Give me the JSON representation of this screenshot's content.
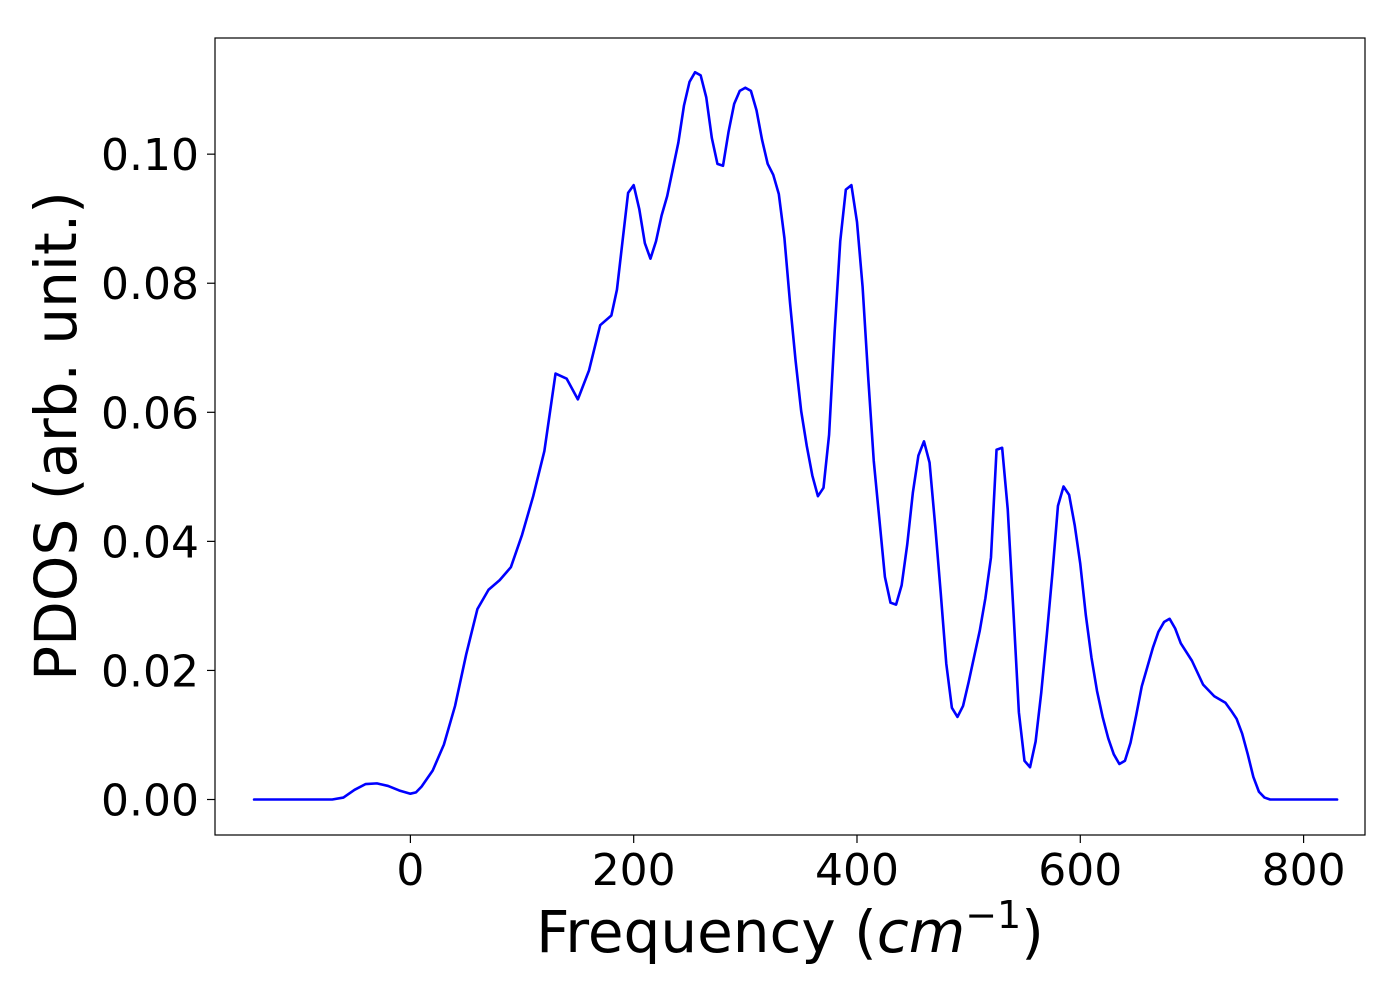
{
  "chart_data": {
    "type": "line",
    "xlabel": "Frequency (",
    "xlabel_unit": "cm",
    "xlabel_exponent": "−1",
    "xlabel_close": ")",
    "ylabel": "PDOS (arb. unit.)",
    "xlim": [
      -175,
      855
    ],
    "ylim": [
      -0.0055,
      0.118
    ],
    "x_ticks": [
      {
        "value": 0,
        "label": "0"
      },
      {
        "value": 200,
        "label": "200"
      },
      {
        "value": 400,
        "label": "400"
      },
      {
        "value": 600,
        "label": "600"
      },
      {
        "value": 800,
        "label": "800"
      }
    ],
    "y_ticks": [
      {
        "value": 0.0,
        "label": "0.00"
      },
      {
        "value": 0.02,
        "label": "0.02"
      },
      {
        "value": 0.04,
        "label": "0.04"
      },
      {
        "value": 0.06,
        "label": "0.06"
      },
      {
        "value": 0.08,
        "label": "0.08"
      },
      {
        "value": 0.1,
        "label": "0.10"
      }
    ],
    "grid": false,
    "series": [
      {
        "color": "#0000ff",
        "x": [
          -140,
          -100,
          -80,
          -70,
          -60,
          -50,
          -40,
          -30,
          -20,
          -10,
          0,
          5,
          10,
          20,
          30,
          40,
          50,
          60,
          70,
          80,
          90,
          100,
          110,
          120,
          125,
          130,
          140,
          150,
          160,
          170,
          180,
          185,
          190,
          195,
          200,
          205,
          210,
          215,
          220,
          225,
          230,
          240,
          245,
          250,
          255,
          260,
          265,
          270,
          275,
          280,
          285,
          290,
          295,
          300,
          305,
          310,
          315,
          320,
          325,
          330,
          335,
          340,
          345,
          350,
          355,
          360,
          365,
          370,
          375,
          380,
          385,
          390,
          395,
          400,
          405,
          410,
          415,
          420,
          425,
          430,
          435,
          440,
          445,
          450,
          455,
          460,
          465,
          470,
          475,
          480,
          485,
          490,
          495,
          500,
          505,
          510,
          515,
          520,
          525,
          530,
          535,
          540,
          545,
          550,
          555,
          560,
          565,
          570,
          575,
          580,
          585,
          590,
          595,
          600,
          605,
          610,
          615,
          620,
          625,
          630,
          635,
          640,
          645,
          650,
          655,
          660,
          665,
          670,
          675,
          680,
          685,
          690,
          700,
          710,
          720,
          730,
          735,
          740,
          745,
          750,
          755,
          760,
          765,
          770,
          780,
          800,
          830
        ],
        "y": [
          0.0,
          0.0,
          0.0,
          0.0,
          0.0003,
          0.0015,
          0.0024,
          0.0025,
          0.0021,
          0.0014,
          0.0009,
          0.0011,
          0.002,
          0.0045,
          0.0085,
          0.0145,
          0.0225,
          0.0295,
          0.0325,
          0.034,
          0.036,
          0.041,
          0.047,
          0.054,
          0.06,
          0.066,
          0.0652,
          0.062,
          0.0665,
          0.0735,
          0.075,
          0.079,
          0.0865,
          0.094,
          0.0952,
          0.0915,
          0.0862,
          0.0838,
          0.0865,
          0.0905,
          0.0935,
          0.1018,
          0.1075,
          0.1112,
          0.1127,
          0.1122,
          0.1088,
          0.1025,
          0.0985,
          0.0982,
          0.1035,
          0.1078,
          0.1098,
          0.1103,
          0.1098,
          0.1068,
          0.1022,
          0.0985,
          0.0968,
          0.0938,
          0.087,
          0.077,
          0.068,
          0.0602,
          0.0548,
          0.0502,
          0.047,
          0.0483,
          0.0565,
          0.0725,
          0.0865,
          0.0945,
          0.0952,
          0.0895,
          0.0795,
          0.0655,
          0.0525,
          0.0435,
          0.0345,
          0.0305,
          0.0302,
          0.0332,
          0.0395,
          0.0475,
          0.0533,
          0.0555,
          0.0522,
          0.0425,
          0.032,
          0.021,
          0.0142,
          0.0128,
          0.0145,
          0.0182,
          0.0222,
          0.0262,
          0.0312,
          0.0375,
          0.0542,
          0.0545,
          0.045,
          0.0295,
          0.0135,
          0.006,
          0.005,
          0.009,
          0.0165,
          0.0255,
          0.035,
          0.0455,
          0.0485,
          0.0472,
          0.0425,
          0.0365,
          0.0285,
          0.022,
          0.0168,
          0.0128,
          0.0095,
          0.007,
          0.0055,
          0.006,
          0.0088,
          0.013,
          0.0175,
          0.0205,
          0.0235,
          0.026,
          0.0275,
          0.028,
          0.0265,
          0.0242,
          0.0215,
          0.0178,
          0.016,
          0.015,
          0.0138,
          0.0125,
          0.0102,
          0.007,
          0.0035,
          0.0012,
          0.0003,
          0.0,
          0.0,
          0.0,
          0.0
        ]
      }
    ]
  }
}
